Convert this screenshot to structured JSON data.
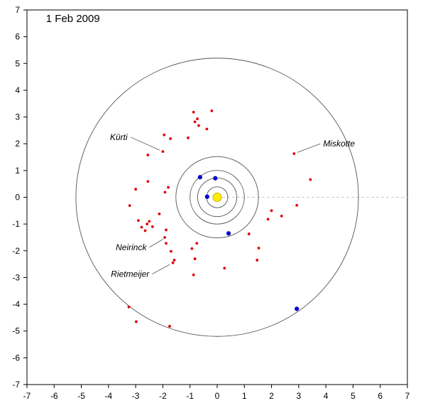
{
  "chart_data": {
    "type": "scatter",
    "title": "1 Feb 2009",
    "xlabel": "",
    "ylabel": "",
    "xlim": [
      -7,
      7
    ],
    "ylim": [
      -7,
      7
    ],
    "x_ticks": [
      "-7",
      "-6",
      "-5",
      "-4",
      "-3",
      "-2",
      "-1",
      "0",
      "1",
      "2",
      "3",
      "4",
      "5",
      "6",
      "7"
    ],
    "y_ticks": [
      "7",
      "6",
      "5",
      "4",
      "3",
      "2",
      "1",
      "0",
      "-1",
      "-2",
      "-3",
      "-4",
      "-5",
      "-6",
      "-7"
    ],
    "grid": false,
    "colors": {
      "axes": "#000000",
      "orbit": "#555555",
      "reference_line": "#cccccc",
      "sun_fill": "#ffee00",
      "sun_stroke": "#c8b400",
      "planet": "#0000cc",
      "comet": "#e00000"
    },
    "sun": {
      "x": 0,
      "y": 0
    },
    "orbits": [
      {
        "radius": 0.39
      },
      {
        "radius": 0.72
      },
      {
        "radius": 1.0
      },
      {
        "radius": 1.52
      },
      {
        "radius": 5.2
      }
    ],
    "reference_line": {
      "from": [
        0,
        0
      ],
      "to": [
        7,
        0
      ]
    },
    "planets": [
      {
        "x": -0.37,
        "y": 0.02
      },
      {
        "x": -0.07,
        "y": 0.71
      },
      {
        "x": -0.63,
        "y": 0.75
      },
      {
        "x": 0.42,
        "y": -1.35
      },
      {
        "x": 2.93,
        "y": -4.17
      }
    ],
    "comets": [
      {
        "x": -0.87,
        "y": 3.18
      },
      {
        "x": -0.2,
        "y": 3.23
      },
      {
        "x": -0.73,
        "y": 2.93
      },
      {
        "x": -0.82,
        "y": 2.82
      },
      {
        "x": -0.68,
        "y": 2.68
      },
      {
        "x": -0.38,
        "y": 2.55
      },
      {
        "x": -1.07,
        "y": 2.22
      },
      {
        "x": -1.95,
        "y": 2.33
      },
      {
        "x": -1.72,
        "y": 2.19
      },
      {
        "x": -2.0,
        "y": 1.71
      },
      {
        "x": -2.55,
        "y": 1.58
      },
      {
        "x": -2.55,
        "y": 0.59
      },
      {
        "x": -1.8,
        "y": 0.37
      },
      {
        "x": -1.92,
        "y": 0.19
      },
      {
        "x": -3.0,
        "y": 0.3
      },
      {
        "x": -3.22,
        "y": -0.31
      },
      {
        "x": -2.13,
        "y": -0.62
      },
      {
        "x": -2.9,
        "y": -0.87
      },
      {
        "x": -2.5,
        "y": -0.9
      },
      {
        "x": -2.58,
        "y": -1.0
      },
      {
        "x": -2.38,
        "y": -1.1
      },
      {
        "x": -2.78,
        "y": -1.12
      },
      {
        "x": -2.65,
        "y": -1.25
      },
      {
        "x": -1.88,
        "y": -1.22
      },
      {
        "x": -1.93,
        "y": -1.5
      },
      {
        "x": -1.88,
        "y": -1.72
      },
      {
        "x": -1.7,
        "y": -2.02
      },
      {
        "x": -0.93,
        "y": -1.92
      },
      {
        "x": -0.75,
        "y": -1.72
      },
      {
        "x": -0.82,
        "y": -2.3
      },
      {
        "x": -1.58,
        "y": -2.35
      },
      {
        "x": -1.63,
        "y": -2.45
      },
      {
        "x": -0.87,
        "y": -2.9
      },
      {
        "x": 0.27,
        "y": -2.65
      },
      {
        "x": 1.17,
        "y": -1.37
      },
      {
        "x": 1.53,
        "y": -1.9
      },
      {
        "x": 1.47,
        "y": -2.35
      },
      {
        "x": 1.87,
        "y": -0.82
      },
      {
        "x": 2.0,
        "y": -0.5
      },
      {
        "x": 2.37,
        "y": -0.7
      },
      {
        "x": 2.93,
        "y": -0.3
      },
      {
        "x": 2.83,
        "y": 1.63
      },
      {
        "x": 3.43,
        "y": 0.66
      },
      {
        "x": -3.25,
        "y": -4.1
      },
      {
        "x": -2.98,
        "y": -4.65
      },
      {
        "x": -1.75,
        "y": -4.82
      }
    ],
    "annotations": [
      {
        "label": "Kürti",
        "x": -3.3,
        "y": 2.25,
        "anchor": "end",
        "target": [
          -2.0,
          1.71
        ]
      },
      {
        "label": "Miskotte",
        "x": 3.9,
        "y": 2.0,
        "anchor": "start",
        "target": [
          2.83,
          1.63
        ]
      },
      {
        "label": "Neirinck",
        "x": -2.6,
        "y": -1.87,
        "anchor": "end",
        "target": [
          -1.88,
          -1.5
        ]
      },
      {
        "label": "Rietmeijer",
        "x": -2.5,
        "y": -2.87,
        "anchor": "end",
        "target": [
          -1.63,
          -2.45
        ]
      }
    ]
  }
}
